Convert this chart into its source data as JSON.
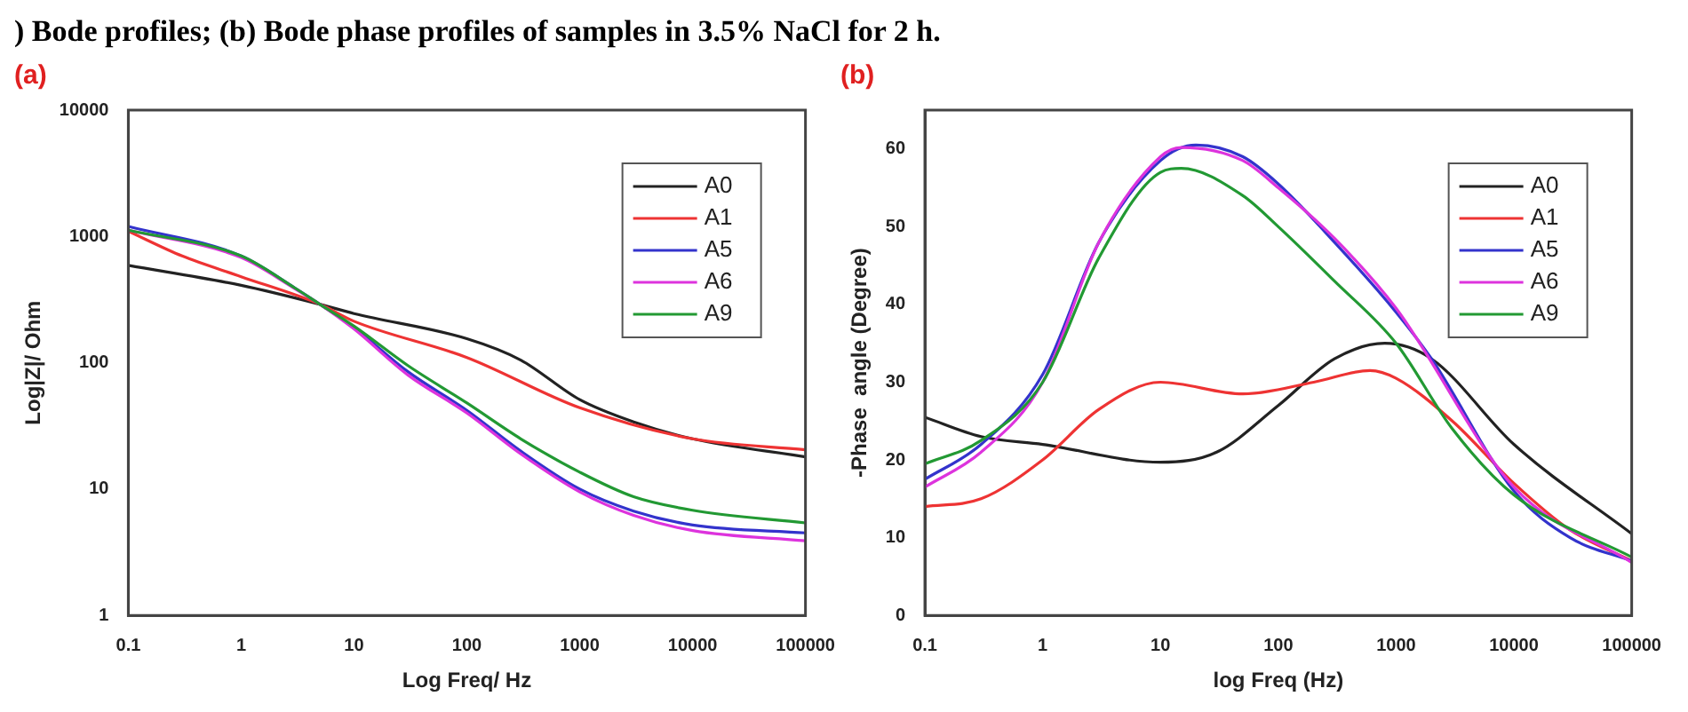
{
  "chart_data": [
    {
      "type": "line",
      "title": "(a)",
      "xlabel": "Log Freq/ Hz",
      "ylabel": "Log|Z|/ Ohm",
      "log": "xy",
      "legend": "top right",
      "grid": false,
      "marker": "none",
      "line_style": "solid",
      "annotations": [
        ") Bode profiles; (b) Bode phase profiles of samples in 3.5% NaCl for 2 h."
      ],
      "xlim": [
        0.1,
        100000
      ],
      "xticks": [
        0.1,
        1,
        10,
        100,
        1000,
        10000,
        100000
      ],
      "ylim": [
        1,
        10000
      ],
      "yticks": [
        1,
        10,
        100,
        1000,
        10000
      ],
      "series": [
        {
          "name": "A0",
          "color": "#222222",
          "x": [
            0.1,
            1,
            5,
            10,
            100,
            300,
            1000,
            3000,
            10000,
            100000
          ],
          "values": [
            590,
            410,
            290,
            245,
            155,
            105,
            51,
            34,
            25,
            18
          ]
        },
        {
          "name": "A1",
          "color": "#ee3333",
          "x": [
            0.1,
            0.3,
            1,
            5,
            10,
            100,
            1000,
            10000,
            100000
          ],
          "values": [
            1100,
            700,
            480,
            290,
            213,
            110,
            44,
            25,
            20.5
          ]
        },
        {
          "name": "A5",
          "color": "#3333cc",
          "x": [
            0.1,
            1,
            3,
            5,
            10,
            30,
            100,
            300,
            1000,
            3000,
            10000,
            100000
          ],
          "values": [
            1200,
            700,
            390,
            290,
            190,
            85,
            42,
            20,
            10,
            6.7,
            5.2,
            4.5
          ]
        },
        {
          "name": "A6",
          "color": "#dd33dd",
          "x": [
            0.1,
            1,
            3,
            5,
            10,
            30,
            100,
            300,
            1000,
            3000,
            10000,
            100000
          ],
          "values": [
            1120,
            680,
            385,
            290,
            185,
            80,
            40,
            19,
            9.5,
            6.2,
            4.7,
            3.9
          ]
        },
        {
          "name": "A9",
          "color": "#229933",
          "x": [
            0.1,
            1,
            3,
            5,
            10,
            30,
            100,
            300,
            1000,
            3000,
            10000,
            100000
          ],
          "values": [
            1120,
            700,
            390,
            290,
            195,
            95,
            48,
            25,
            13.6,
            8.7,
            6.8,
            5.4
          ]
        }
      ]
    },
    {
      "type": "line",
      "title": "(b)",
      "xlabel": "log Freq (Hz)",
      "ylabel": "-Phase  angle (Degree)",
      "log": "x",
      "legend": "top right",
      "grid": false,
      "marker": "none",
      "line_style": "solid",
      "xlim": [
        0.1,
        100000
      ],
      "xticks": [
        0.1,
        1,
        10,
        100,
        1000,
        10000,
        100000
      ],
      "ylim": [
        0,
        65
      ],
      "yticks": [
        0,
        10,
        20,
        30,
        40,
        50,
        60
      ],
      "series": [
        {
          "name": "A0",
          "color": "#222222",
          "x": [
            0.1,
            0.3,
            1,
            10,
            30,
            100,
            300,
            800,
            2000,
            10000,
            100000
          ],
          "values": [
            25.5,
            23,
            22,
            19.7,
            21,
            27,
            33,
            35,
            33,
            22,
            10.5
          ]
        },
        {
          "name": "A1",
          "color": "#ee3333",
          "x": [
            0.1,
            0.3,
            1,
            3,
            10,
            50,
            200,
            600,
            1000,
            3000,
            10000,
            30000,
            100000
          ],
          "values": [
            14,
            15,
            20,
            26.5,
            30,
            28.5,
            30,
            31.5,
            30.5,
            25,
            17,
            11,
            7
          ]
        },
        {
          "name": "A5",
          "color": "#3333cc",
          "x": [
            0.1,
            0.3,
            1,
            3,
            10,
            20,
            50,
            100,
            300,
            1000,
            2000,
            10000,
            30000,
            100000
          ],
          "values": [
            17.5,
            22,
            31,
            48,
            58.5,
            60.5,
            59,
            55.5,
            48,
            39,
            33,
            16,
            10,
            7
          ]
        },
        {
          "name": "A6",
          "color": "#dd33dd",
          "x": [
            0.1,
            0.3,
            1,
            3,
            10,
            15,
            50,
            100,
            300,
            1000,
            10000,
            100000
          ],
          "values": [
            16.5,
            21,
            30,
            48,
            59,
            60.2,
            58.5,
            55,
            48.5,
            39.5,
            16.5,
            6.8
          ]
        },
        {
          "name": "A9",
          "color": "#229933",
          "x": [
            0.1,
            0.3,
            1,
            3,
            10,
            15,
            50,
            100,
            300,
            1000,
            3000,
            10000,
            100000
          ],
          "values": [
            19.5,
            22.5,
            30,
            46,
            57,
            57.5,
            54,
            50,
            43,
            35,
            24,
            15.5,
            7.5
          ]
        }
      ]
    }
  ]
}
